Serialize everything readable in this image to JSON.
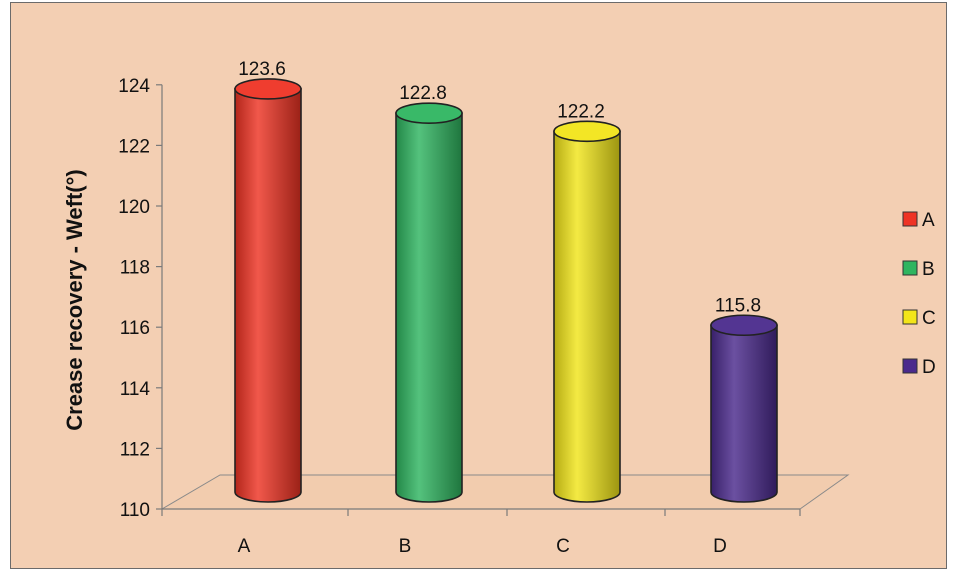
{
  "chart_data": {
    "type": "bar",
    "style": "3d-cylinder",
    "categories": [
      "A",
      "B",
      "C",
      "D"
    ],
    "values": [
      123.6,
      122.8,
      122.2,
      115.8
    ],
    "data_labels": [
      "123.6",
      "122.8",
      "122.2",
      "115.8"
    ],
    "colors": [
      "#ee3324",
      "#2fb560",
      "#f2e51a",
      "#4a2a8c"
    ],
    "ylabel": "Crease recovery - Weft(°)",
    "xlabel": "",
    "ylim": [
      110,
      124
    ],
    "yticks": [
      "110",
      "112",
      "114",
      "116",
      "118",
      "120",
      "122",
      "124"
    ],
    "grid": false,
    "legend": {
      "position": "right",
      "entries": [
        "A",
        "B",
        "C",
        "D"
      ]
    }
  }
}
